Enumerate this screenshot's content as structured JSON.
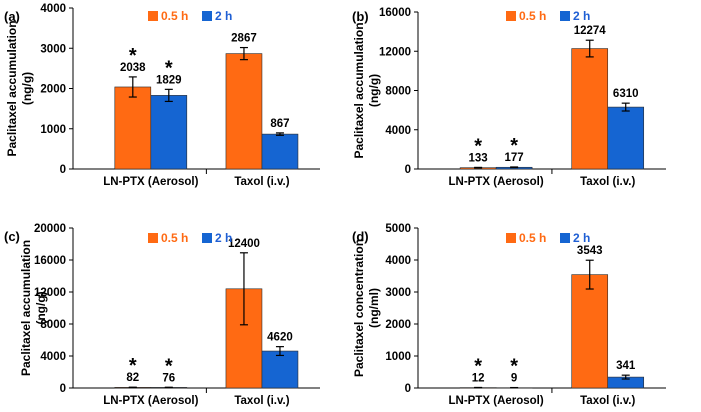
{
  "colors": {
    "series_05h": "#ff6a13",
    "series_2h": "#1565d2",
    "legend_05h_text": "#ff6a13",
    "legend_2h_text": "#1f5fd4"
  },
  "chart_data": [
    {
      "type": "bar",
      "panel_label": "(a)",
      "ylabel": "Paclitaxel accumulation",
      "yunit": "(ng/g)",
      "ylim": [
        0,
        4000
      ],
      "yticks": [
        "0",
        "1000",
        "2000",
        "3000",
        "4000"
      ],
      "categories": [
        "LN-PTX (Aerosol)",
        "Taxol (i.v.)"
      ],
      "series": [
        {
          "name": "0.5 h",
          "values": [
            2038,
            2867
          ],
          "errors": [
            250,
            150
          ],
          "labels": [
            "2038",
            "2867"
          ],
          "stars": [
            "*",
            ""
          ]
        },
        {
          "name": "2 h",
          "values": [
            1829,
            867
          ],
          "errors": [
            150,
            30
          ],
          "labels": [
            "1829",
            "867"
          ],
          "stars": [
            "*",
            ""
          ]
        }
      ]
    },
    {
      "type": "bar",
      "panel_label": "(b)",
      "ylabel": "Paclitaxel accumulation",
      "yunit": "(ng/g)",
      "ylim": [
        0,
        16000
      ],
      "yticks": [
        "0",
        "4000",
        "8000",
        "12000",
        "16000"
      ],
      "categories": [
        "LN-PTX (Aerosol)",
        "Taxol (i.v.)"
      ],
      "series": [
        {
          "name": "0.5 h",
          "values": [
            133,
            12274
          ],
          "errors": [
            30,
            850
          ],
          "labels": [
            "133",
            "12274"
          ],
          "stars": [
            "*",
            ""
          ]
        },
        {
          "name": "2 h",
          "values": [
            177,
            6310
          ],
          "errors": [
            30,
            400
          ],
          "labels": [
            "177",
            "6310"
          ],
          "stars": [
            "*",
            ""
          ]
        }
      ]
    },
    {
      "type": "bar",
      "panel_label": "(c)",
      "ylabel": "Paclitaxel accumulation",
      "yunit": "(ng/g)",
      "ylim": [
        0,
        20000
      ],
      "yticks": [
        "0",
        "4000",
        "8000",
        "12000",
        "16000",
        "20000"
      ],
      "categories": [
        "LN-PTX (Aerosol)",
        "Taxol (i.v.)"
      ],
      "series": [
        {
          "name": "0.5 h",
          "values": [
            82,
            12400
          ],
          "errors": [
            15,
            4500
          ],
          "labels": [
            "82",
            "12400"
          ],
          "stars": [
            "*",
            ""
          ]
        },
        {
          "name": "2 h",
          "values": [
            76,
            4620
          ],
          "errors": [
            15,
            550
          ],
          "labels": [
            "76",
            "4620"
          ],
          "stars": [
            "*",
            ""
          ]
        }
      ]
    },
    {
      "type": "bar",
      "panel_label": "(d)",
      "ylabel": "Paclitaxel concentration",
      "yunit": "(ng/ml)",
      "ylim": [
        0,
        5000
      ],
      "yticks": [
        "0",
        "1000",
        "2000",
        "3000",
        "4000",
        "5000"
      ],
      "categories": [
        "LN-PTX (Aerosol)",
        "Taxol (i.v.)"
      ],
      "series": [
        {
          "name": "0.5 h",
          "values": [
            12,
            3543
          ],
          "errors": [
            5,
            450
          ],
          "labels": [
            "12",
            "3543"
          ],
          "stars": [
            "*",
            ""
          ]
        },
        {
          "name": "2 h",
          "values": [
            9,
            341
          ],
          "errors": [
            5,
            60
          ],
          "labels": [
            "9",
            "341"
          ],
          "stars": [
            "*",
            ""
          ]
        }
      ]
    }
  ]
}
